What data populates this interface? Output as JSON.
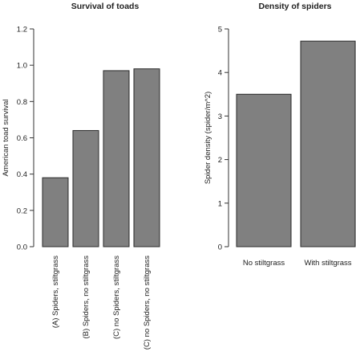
{
  "chart_data": [
    {
      "type": "bar",
      "title": "Survival of toads",
      "ylabel": "American toad survival",
      "xlabel": "",
      "categories": [
        "(A) Spiders, stiltgrass",
        "(B) Spiders, no stiltgrass",
        "(C) no Spiders, stiltgrass",
        "(C) no Spiders, no stiltgrass"
      ],
      "values": [
        0.38,
        0.64,
        0.97,
        0.98
      ],
      "ylim": [
        0,
        1.2
      ],
      "yticks": [
        "0.0",
        "0.2",
        "0.4",
        "0.6",
        "0.8",
        "1.0",
        "1.2"
      ],
      "bar_color": "#808080",
      "grid": false
    },
    {
      "type": "bar",
      "title": "Density of spiders",
      "ylabel": "Spider density (spider/m^2)",
      "xlabel": "",
      "categories": [
        "No stiltgrass",
        "With stiltgrass"
      ],
      "values": [
        3.5,
        4.72
      ],
      "ylim": [
        0,
        5
      ],
      "yticks": [
        "0",
        "1",
        "2",
        "3",
        "4",
        "5"
      ],
      "bar_color": "#808080",
      "grid": false
    }
  ]
}
